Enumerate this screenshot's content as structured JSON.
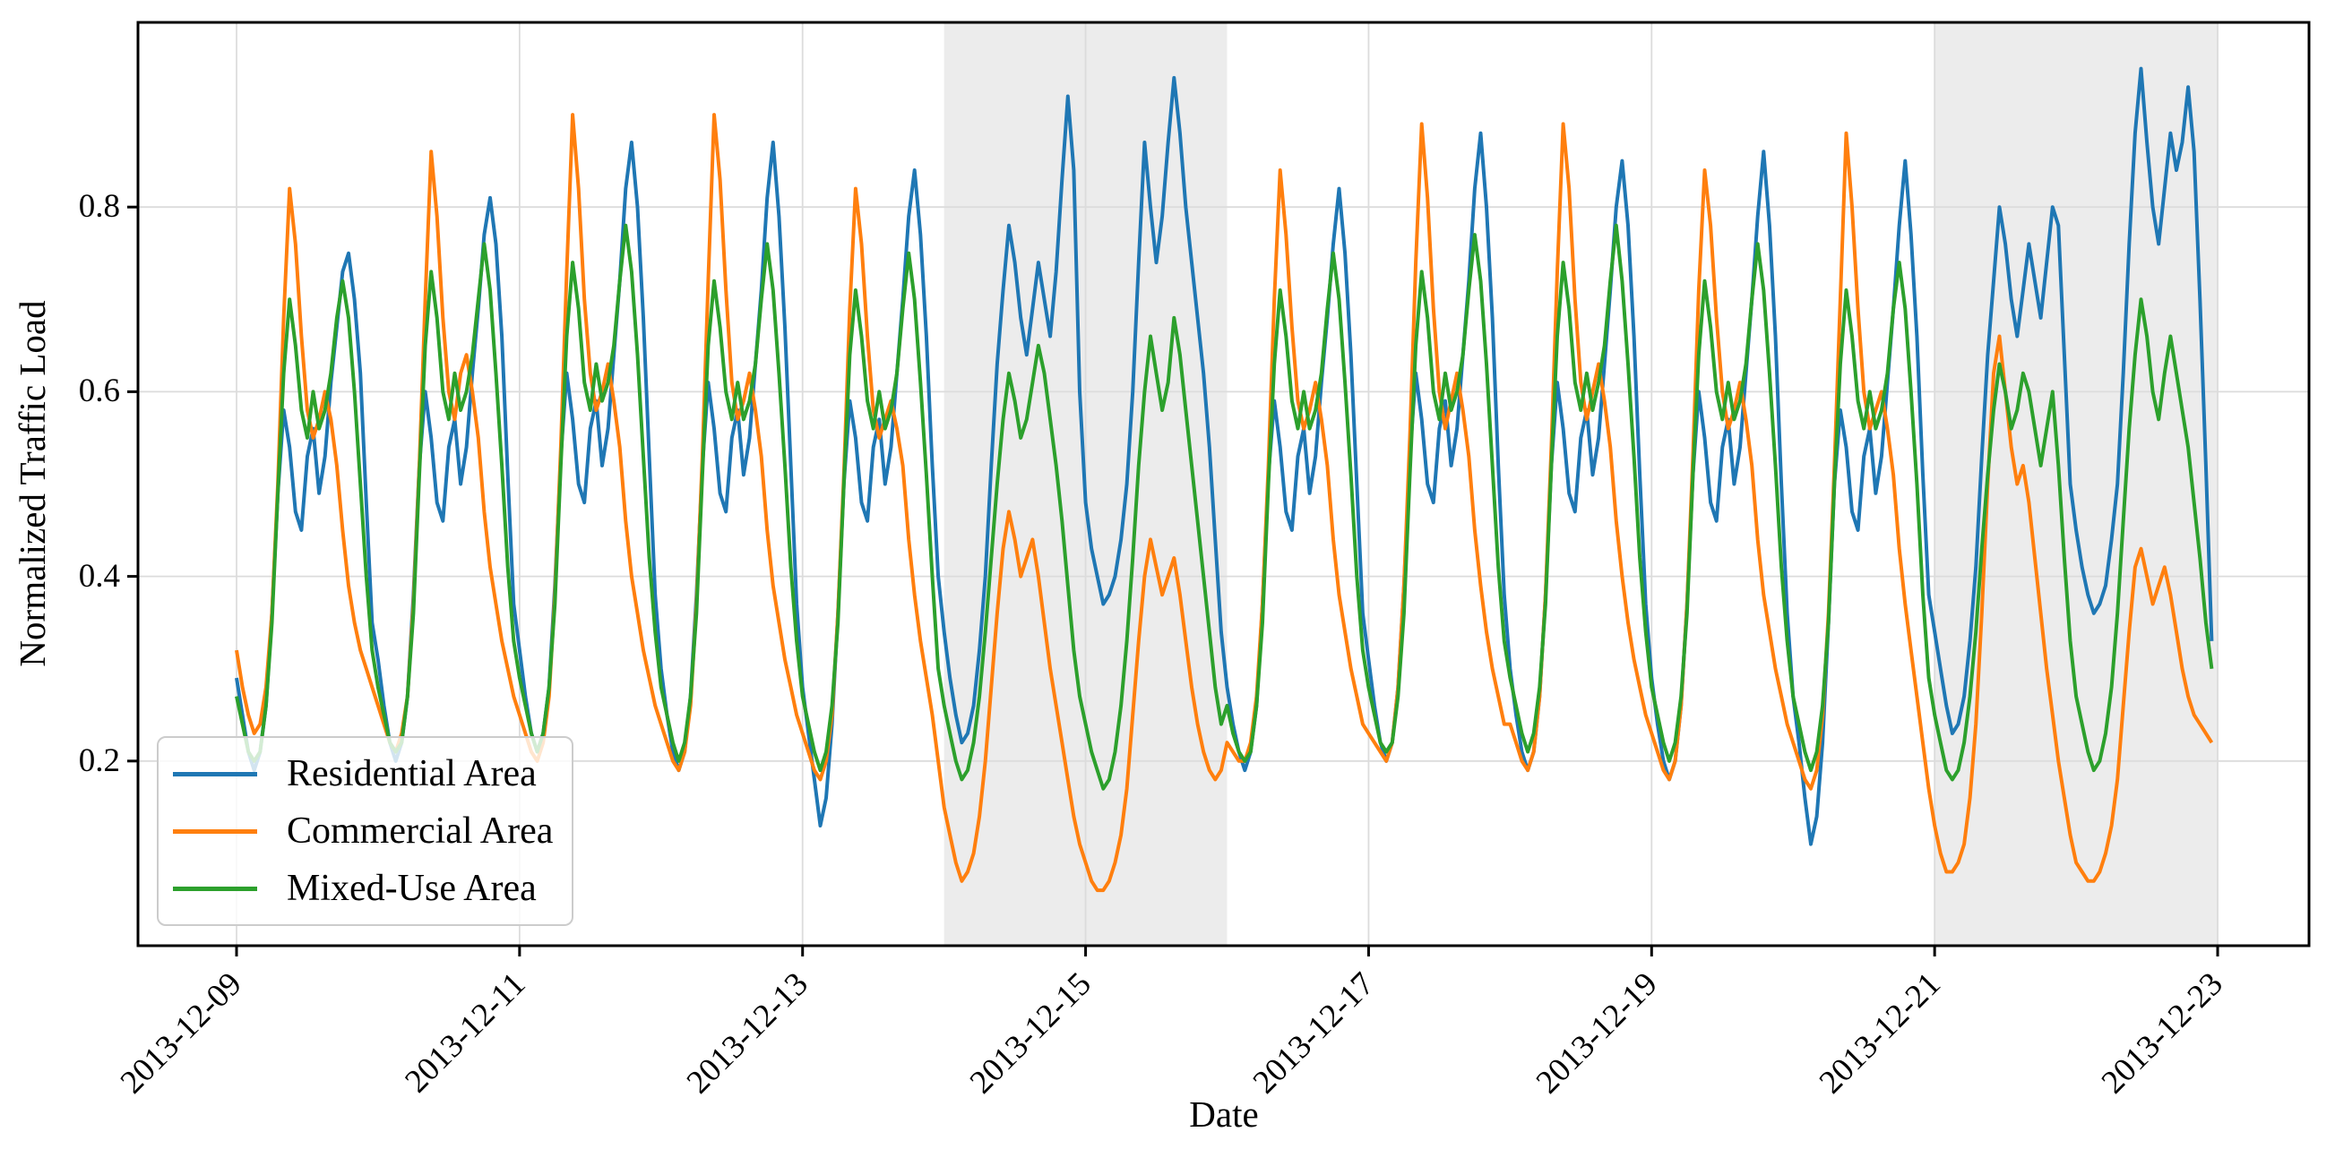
{
  "chart_data": {
    "type": "line",
    "title": "",
    "xlabel": "Date",
    "ylabel": "Normalized Traffic Load",
    "x_start": "2013-12-09T00:00",
    "interval_hours": 1,
    "points_per_day": 24,
    "num_days": 14,
    "ylim": [
      0,
      1
    ],
    "yticks": [
      "0.2",
      "0.4",
      "0.6",
      "0.8"
    ],
    "ytick_values": [
      0.2,
      0.4,
      0.6,
      0.8
    ],
    "xticks": [
      {
        "label": "2013-12-09",
        "day": 0
      },
      {
        "label": "2013-12-11",
        "day": 2
      },
      {
        "label": "2013-12-13",
        "day": 4
      },
      {
        "label": "2013-12-15",
        "day": 6
      },
      {
        "label": "2013-12-17",
        "day": 8
      },
      {
        "label": "2013-12-19",
        "day": 10
      },
      {
        "label": "2013-12-21",
        "day": 12
      },
      {
        "label": "2013-12-23",
        "day": 14
      }
    ],
    "grid": true,
    "legend_position": "lower left",
    "weekend_spans": [
      {
        "start_day": 5,
        "end_day": 7
      },
      {
        "start_day": 12,
        "end_day": 14
      }
    ],
    "colors": {
      "weekend_shade": "#ececec",
      "grid": "#dcdcdc",
      "spine": "#000000",
      "background": "#ffffff"
    },
    "series": [
      {
        "name": "Residential Area",
        "color": "#1f77b4",
        "values": [
          0.29,
          0.25,
          0.21,
          0.19,
          0.21,
          0.26,
          0.36,
          0.49,
          0.58,
          0.54,
          0.47,
          0.45,
          0.53,
          0.56,
          0.49,
          0.53,
          0.61,
          0.67,
          0.73,
          0.75,
          0.7,
          0.62,
          0.48,
          0.35,
          0.31,
          0.26,
          0.22,
          0.2,
          0.22,
          0.27,
          0.38,
          0.52,
          0.6,
          0.55,
          0.48,
          0.46,
          0.54,
          0.57,
          0.5,
          0.54,
          0.62,
          0.69,
          0.77,
          0.81,
          0.76,
          0.66,
          0.51,
          0.37,
          0.32,
          0.27,
          0.23,
          0.21,
          0.23,
          0.28,
          0.39,
          0.53,
          0.62,
          0.57,
          0.5,
          0.48,
          0.56,
          0.59,
          0.52,
          0.56,
          0.64,
          0.72,
          0.82,
          0.87,
          0.8,
          0.68,
          0.53,
          0.38,
          0.3,
          0.25,
          0.21,
          0.19,
          0.21,
          0.27,
          0.38,
          0.52,
          0.61,
          0.56,
          0.49,
          0.47,
          0.55,
          0.58,
          0.51,
          0.55,
          0.63,
          0.71,
          0.81,
          0.87,
          0.79,
          0.67,
          0.52,
          0.37,
          0.28,
          0.23,
          0.18,
          0.13,
          0.16,
          0.24,
          0.36,
          0.5,
          0.59,
          0.55,
          0.48,
          0.46,
          0.54,
          0.57,
          0.5,
          0.54,
          0.62,
          0.7,
          0.79,
          0.84,
          0.77,
          0.66,
          0.52,
          0.4,
          0.34,
          0.29,
          0.25,
          0.22,
          0.23,
          0.26,
          0.32,
          0.4,
          0.52,
          0.63,
          0.71,
          0.78,
          0.74,
          0.68,
          0.64,
          0.69,
          0.74,
          0.7,
          0.66,
          0.73,
          0.83,
          0.92,
          0.84,
          0.6,
          0.48,
          0.43,
          0.4,
          0.37,
          0.38,
          0.4,
          0.44,
          0.5,
          0.6,
          0.74,
          0.87,
          0.8,
          0.74,
          0.79,
          0.87,
          0.94,
          0.88,
          0.8,
          0.74,
          0.68,
          0.62,
          0.54,
          0.44,
          0.34,
          0.28,
          0.24,
          0.21,
          0.19,
          0.21,
          0.26,
          0.37,
          0.51,
          0.59,
          0.54,
          0.47,
          0.45,
          0.53,
          0.56,
          0.49,
          0.53,
          0.61,
          0.68,
          0.76,
          0.82,
          0.75,
          0.64,
          0.5,
          0.36,
          0.31,
          0.26,
          0.22,
          0.2,
          0.22,
          0.28,
          0.39,
          0.53,
          0.62,
          0.57,
          0.5,
          0.48,
          0.56,
          0.59,
          0.52,
          0.56,
          0.64,
          0.72,
          0.82,
          0.88,
          0.8,
          0.68,
          0.52,
          0.38,
          0.3,
          0.25,
          0.21,
          0.19,
          0.21,
          0.27,
          0.38,
          0.52,
          0.61,
          0.56,
          0.49,
          0.47,
          0.55,
          0.58,
          0.51,
          0.55,
          0.63,
          0.71,
          0.8,
          0.85,
          0.78,
          0.66,
          0.51,
          0.37,
          0.29,
          0.24,
          0.2,
          0.18,
          0.2,
          0.26,
          0.37,
          0.51,
          0.6,
          0.55,
          0.48,
          0.46,
          0.54,
          0.57,
          0.5,
          0.54,
          0.62,
          0.7,
          0.79,
          0.86,
          0.78,
          0.66,
          0.5,
          0.36,
          0.27,
          0.22,
          0.16,
          0.11,
          0.14,
          0.22,
          0.35,
          0.5,
          0.58,
          0.54,
          0.47,
          0.45,
          0.53,
          0.56,
          0.49,
          0.53,
          0.61,
          0.69,
          0.78,
          0.85,
          0.77,
          0.66,
          0.51,
          0.38,
          0.34,
          0.3,
          0.26,
          0.23,
          0.24,
          0.27,
          0.33,
          0.41,
          0.53,
          0.64,
          0.72,
          0.8,
          0.76,
          0.7,
          0.66,
          0.71,
          0.76,
          0.72,
          0.68,
          0.74,
          0.8,
          0.78,
          0.64,
          0.5,
          0.45,
          0.41,
          0.38,
          0.36,
          0.37,
          0.39,
          0.44,
          0.5,
          0.62,
          0.76,
          0.88,
          0.95,
          0.87,
          0.8,
          0.76,
          0.82,
          0.88,
          0.84,
          0.87,
          0.93,
          0.86,
          0.7,
          0.52,
          0.33
        ]
      },
      {
        "name": "Commercial Area",
        "color": "#ff7f0e",
        "values": [
          0.32,
          0.28,
          0.25,
          0.23,
          0.24,
          0.28,
          0.36,
          0.5,
          0.68,
          0.82,
          0.76,
          0.66,
          0.58,
          0.55,
          0.57,
          0.6,
          0.57,
          0.52,
          0.45,
          0.39,
          0.35,
          0.32,
          0.3,
          0.28,
          0.26,
          0.24,
          0.22,
          0.21,
          0.23,
          0.27,
          0.37,
          0.52,
          0.7,
          0.86,
          0.79,
          0.68,
          0.6,
          0.57,
          0.62,
          0.64,
          0.6,
          0.55,
          0.47,
          0.41,
          0.37,
          0.33,
          0.3,
          0.27,
          0.25,
          0.23,
          0.21,
          0.2,
          0.22,
          0.27,
          0.38,
          0.54,
          0.73,
          0.9,
          0.82,
          0.7,
          0.62,
          0.58,
          0.6,
          0.63,
          0.59,
          0.54,
          0.46,
          0.4,
          0.36,
          0.32,
          0.29,
          0.26,
          0.24,
          0.22,
          0.2,
          0.19,
          0.21,
          0.26,
          0.37,
          0.53,
          0.72,
          0.9,
          0.83,
          0.71,
          0.61,
          0.57,
          0.59,
          0.62,
          0.58,
          0.53,
          0.45,
          0.39,
          0.35,
          0.31,
          0.28,
          0.25,
          0.23,
          0.21,
          0.19,
          0.18,
          0.2,
          0.25,
          0.36,
          0.51,
          0.69,
          0.82,
          0.76,
          0.66,
          0.58,
          0.55,
          0.57,
          0.59,
          0.56,
          0.52,
          0.44,
          0.38,
          0.33,
          0.29,
          0.25,
          0.2,
          0.15,
          0.12,
          0.09,
          0.07,
          0.08,
          0.1,
          0.14,
          0.2,
          0.28,
          0.36,
          0.43,
          0.47,
          0.44,
          0.4,
          0.42,
          0.44,
          0.4,
          0.35,
          0.3,
          0.26,
          0.22,
          0.18,
          0.14,
          0.11,
          0.09,
          0.07,
          0.06,
          0.06,
          0.07,
          0.09,
          0.12,
          0.17,
          0.25,
          0.33,
          0.4,
          0.44,
          0.41,
          0.38,
          0.4,
          0.42,
          0.38,
          0.33,
          0.28,
          0.24,
          0.21,
          0.19,
          0.18,
          0.19,
          0.22,
          0.21,
          0.2,
          0.2,
          0.22,
          0.27,
          0.37,
          0.52,
          0.7,
          0.84,
          0.77,
          0.67,
          0.59,
          0.56,
          0.58,
          0.61,
          0.57,
          0.52,
          0.44,
          0.38,
          0.34,
          0.3,
          0.27,
          0.24,
          0.23,
          0.22,
          0.21,
          0.2,
          0.22,
          0.28,
          0.39,
          0.55,
          0.74,
          0.89,
          0.81,
          0.69,
          0.6,
          0.56,
          0.59,
          0.62,
          0.58,
          0.53,
          0.45,
          0.39,
          0.34,
          0.3,
          0.27,
          0.24,
          0.24,
          0.22,
          0.2,
          0.19,
          0.21,
          0.27,
          0.38,
          0.54,
          0.73,
          0.89,
          0.82,
          0.7,
          0.61,
          0.57,
          0.6,
          0.63,
          0.59,
          0.54,
          0.46,
          0.4,
          0.35,
          0.31,
          0.28,
          0.25,
          0.23,
          0.21,
          0.19,
          0.18,
          0.2,
          0.26,
          0.37,
          0.53,
          0.71,
          0.84,
          0.78,
          0.68,
          0.6,
          0.56,
          0.58,
          0.61,
          0.57,
          0.52,
          0.44,
          0.38,
          0.34,
          0.3,
          0.27,
          0.24,
          0.22,
          0.2,
          0.18,
          0.17,
          0.19,
          0.25,
          0.36,
          0.52,
          0.7,
          0.88,
          0.8,
          0.69,
          0.6,
          0.56,
          0.58,
          0.6,
          0.56,
          0.51,
          0.43,
          0.37,
          0.32,
          0.27,
          0.22,
          0.17,
          0.13,
          0.1,
          0.08,
          0.08,
          0.09,
          0.11,
          0.16,
          0.24,
          0.36,
          0.5,
          0.62,
          0.66,
          0.6,
          0.54,
          0.5,
          0.52,
          0.48,
          0.42,
          0.36,
          0.3,
          0.25,
          0.2,
          0.16,
          0.12,
          0.09,
          0.08,
          0.07,
          0.07,
          0.08,
          0.1,
          0.13,
          0.18,
          0.26,
          0.34,
          0.41,
          0.43,
          0.4,
          0.37,
          0.39,
          0.41,
          0.38,
          0.34,
          0.3,
          0.27,
          0.25,
          0.24,
          0.23,
          0.22
        ]
      },
      {
        "name": "Mixed-Use Area",
        "color": "#2ca02c",
        "values": [
          0.27,
          0.24,
          0.21,
          0.2,
          0.21,
          0.26,
          0.35,
          0.49,
          0.62,
          0.7,
          0.65,
          0.58,
          0.55,
          0.6,
          0.56,
          0.58,
          0.62,
          0.68,
          0.72,
          0.68,
          0.6,
          0.5,
          0.4,
          0.32,
          0.28,
          0.25,
          0.22,
          0.21,
          0.22,
          0.27,
          0.36,
          0.51,
          0.65,
          0.73,
          0.68,
          0.6,
          0.57,
          0.62,
          0.58,
          0.6,
          0.64,
          0.7,
          0.76,
          0.71,
          0.62,
          0.52,
          0.41,
          0.33,
          0.29,
          0.26,
          0.23,
          0.21,
          0.23,
          0.28,
          0.37,
          0.52,
          0.66,
          0.74,
          0.69,
          0.61,
          0.58,
          0.63,
          0.59,
          0.61,
          0.65,
          0.72,
          0.78,
          0.73,
          0.64,
          0.53,
          0.42,
          0.34,
          0.28,
          0.25,
          0.22,
          0.2,
          0.22,
          0.27,
          0.36,
          0.51,
          0.65,
          0.72,
          0.67,
          0.6,
          0.57,
          0.61,
          0.57,
          0.59,
          0.63,
          0.7,
          0.76,
          0.71,
          0.62,
          0.52,
          0.41,
          0.33,
          0.27,
          0.24,
          0.21,
          0.19,
          0.21,
          0.26,
          0.35,
          0.5,
          0.64,
          0.71,
          0.66,
          0.59,
          0.56,
          0.6,
          0.56,
          0.58,
          0.62,
          0.69,
          0.75,
          0.7,
          0.61,
          0.51,
          0.4,
          0.3,
          0.26,
          0.23,
          0.2,
          0.18,
          0.19,
          0.22,
          0.27,
          0.34,
          0.42,
          0.5,
          0.57,
          0.62,
          0.59,
          0.55,
          0.57,
          0.61,
          0.65,
          0.62,
          0.57,
          0.52,
          0.46,
          0.39,
          0.32,
          0.27,
          0.24,
          0.21,
          0.19,
          0.17,
          0.18,
          0.21,
          0.26,
          0.33,
          0.42,
          0.52,
          0.6,
          0.66,
          0.62,
          0.58,
          0.61,
          0.68,
          0.64,
          0.58,
          0.52,
          0.46,
          0.4,
          0.34,
          0.28,
          0.24,
          0.26,
          0.23,
          0.21,
          0.2,
          0.21,
          0.26,
          0.35,
          0.5,
          0.63,
          0.71,
          0.66,
          0.59,
          0.56,
          0.6,
          0.56,
          0.58,
          0.62,
          0.69,
          0.75,
          0.7,
          0.61,
          0.51,
          0.4,
          0.32,
          0.28,
          0.25,
          0.22,
          0.21,
          0.22,
          0.27,
          0.36,
          0.51,
          0.65,
          0.73,
          0.68,
          0.6,
          0.57,
          0.62,
          0.58,
          0.6,
          0.64,
          0.71,
          0.77,
          0.72,
          0.63,
          0.52,
          0.41,
          0.33,
          0.29,
          0.26,
          0.23,
          0.21,
          0.23,
          0.28,
          0.37,
          0.52,
          0.66,
          0.74,
          0.69,
          0.61,
          0.58,
          0.62,
          0.58,
          0.61,
          0.65,
          0.72,
          0.78,
          0.72,
          0.63,
          0.53,
          0.42,
          0.34,
          0.28,
          0.25,
          0.22,
          0.2,
          0.22,
          0.27,
          0.36,
          0.51,
          0.64,
          0.72,
          0.67,
          0.6,
          0.57,
          0.61,
          0.57,
          0.59,
          0.63,
          0.7,
          0.76,
          0.71,
          0.62,
          0.52,
          0.41,
          0.33,
          0.27,
          0.24,
          0.21,
          0.19,
          0.21,
          0.26,
          0.35,
          0.5,
          0.63,
          0.71,
          0.66,
          0.59,
          0.56,
          0.6,
          0.56,
          0.58,
          0.62,
          0.69,
          0.74,
          0.69,
          0.6,
          0.5,
          0.38,
          0.29,
          0.25,
          0.22,
          0.19,
          0.18,
          0.19,
          0.22,
          0.27,
          0.34,
          0.43,
          0.51,
          0.58,
          0.63,
          0.6,
          0.56,
          0.58,
          0.62,
          0.6,
          0.56,
          0.52,
          0.56,
          0.6,
          0.52,
          0.42,
          0.33,
          0.27,
          0.24,
          0.21,
          0.19,
          0.2,
          0.23,
          0.28,
          0.36,
          0.46,
          0.56,
          0.64,
          0.7,
          0.66,
          0.6,
          0.57,
          0.62,
          0.66,
          0.62,
          0.58,
          0.54,
          0.48,
          0.42,
          0.35,
          0.3
        ]
      }
    ]
  }
}
